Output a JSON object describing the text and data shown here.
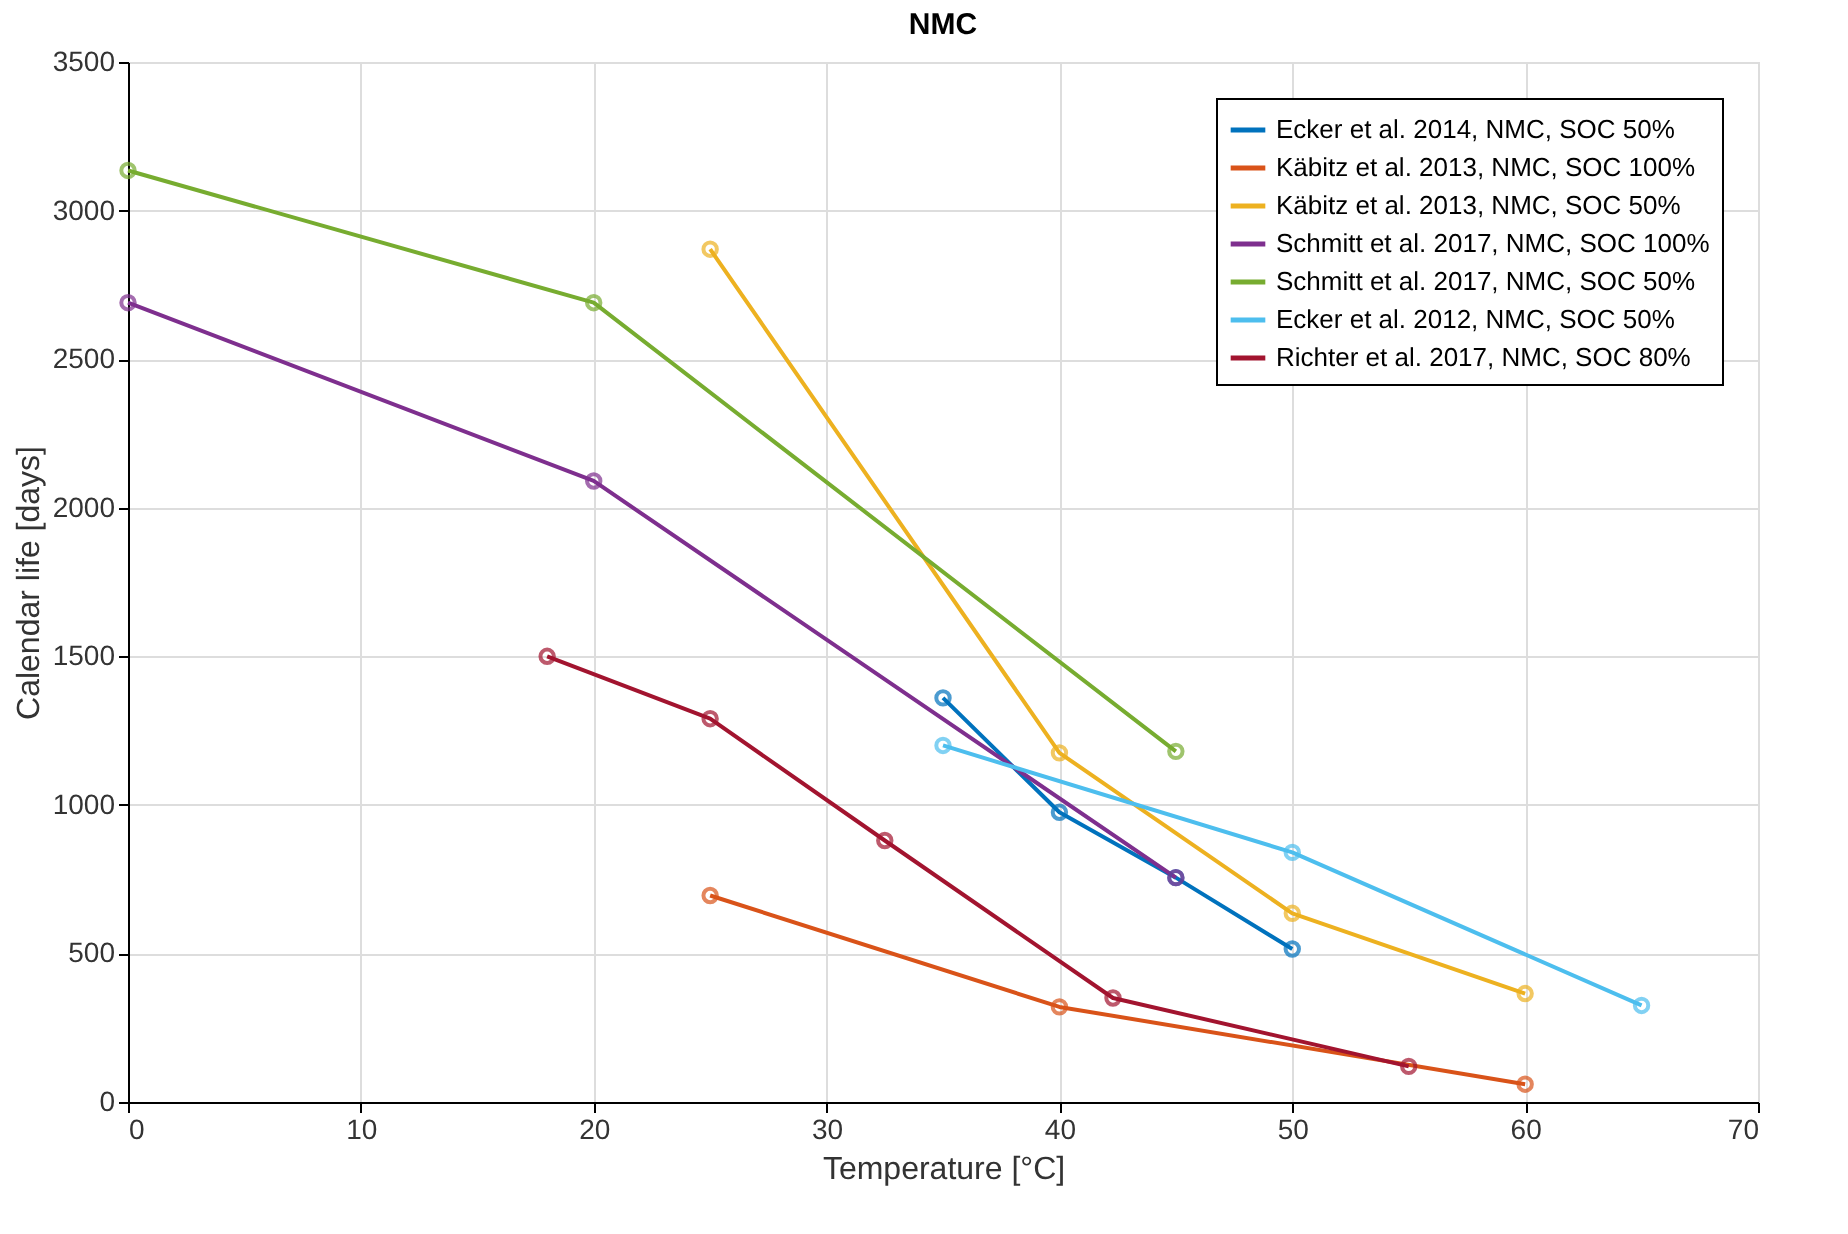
{
  "chart_data": {
    "type": "line",
    "title": "NMC",
    "xlabel": "Temperature [°C]",
    "ylabel": "Calendar life [days]",
    "xlim": [
      0,
      70
    ],
    "ylim": [
      0,
      3500
    ],
    "xticks": [
      0,
      10,
      20,
      30,
      40,
      50,
      60,
      70
    ],
    "yticks": [
      0,
      500,
      1000,
      1500,
      2000,
      2500,
      3000,
      3500
    ],
    "grid": true,
    "legend": "top right",
    "marker": "circle",
    "line_style": "solid",
    "series": [
      {
        "name": "Ecker et al. 2014, NMC, SOC 50%",
        "color": "#0072bd",
        "x": [
          35,
          40,
          45,
          50
        ],
        "values": [
          1360,
          975,
          755,
          515
        ]
      },
      {
        "name": "Käbitz et al. 2013, NMC, SOC 100%",
        "color": "#d95319",
        "x": [
          25,
          40,
          60
        ],
        "values": [
          695,
          320,
          60
        ]
      },
      {
        "name": "Käbitz  et al. 2013, NMC, SOC 50%",
        "color": "#edb120",
        "x": [
          25,
          40,
          50,
          60
        ],
        "values": [
          2870,
          1175,
          635,
          365
        ]
      },
      {
        "name": "Schmitt et al. 2017, NMC, SOC 100%",
        "color": "#7e2f8e",
        "x": [
          0,
          20,
          45
        ],
        "values": [
          2690,
          2090,
          755
        ]
      },
      {
        "name": "Schmitt et al. 2017, NMC, SOC 50%",
        "color": "#77ac30",
        "x": [
          0,
          20,
          45
        ],
        "values": [
          3135,
          2690,
          1180
        ]
      },
      {
        "name": "Ecker et al. 2012, NMC, SOC 50%",
        "color": "#4dbeee",
        "x": [
          35,
          50,
          65
        ],
        "values": [
          1200,
          840,
          325
        ]
      },
      {
        "name": "Richter et al. 2017, NMC, SOC 80%",
        "color": "#a2142f",
        "x": [
          18,
          25,
          32.5,
          42.3,
          55
        ],
        "values": [
          1500,
          1290,
          880,
          350,
          120
        ]
      }
    ]
  }
}
